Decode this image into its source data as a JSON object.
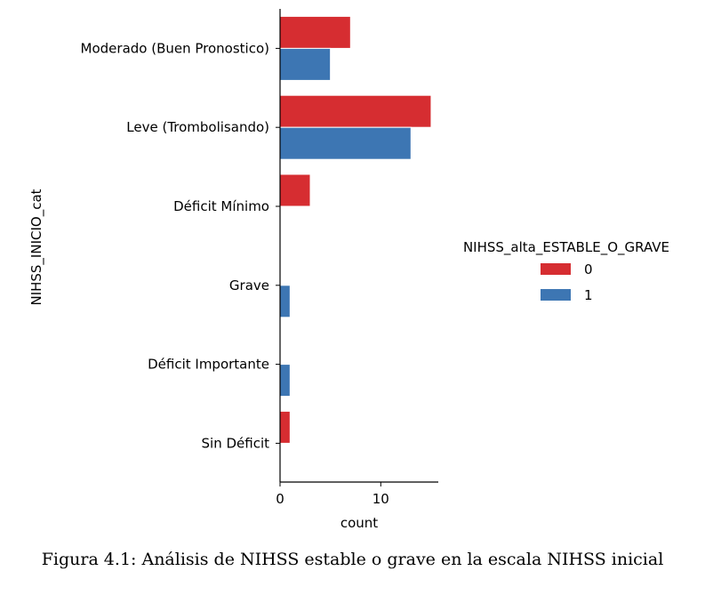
{
  "chart_data": {
    "type": "bar",
    "orientation": "horizontal",
    "categories": [
      "Moderado (Buen Pronostico)",
      "Leve (Trombolisando)",
      "Déficit Mínimo",
      "Grave",
      "Déficit Importante",
      "Sin Déficit"
    ],
    "series": [
      {
        "name": "0",
        "color": "#d62d31",
        "values": [
          7,
          15,
          3,
          0,
          0,
          1
        ]
      },
      {
        "name": "1",
        "color": "#3d76b3",
        "values": [
          5,
          13,
          0,
          1,
          1,
          0
        ]
      }
    ],
    "xlabel": "count",
    "ylabel": "NIHSS_INICIO_cat",
    "xlim": [
      0,
      16
    ],
    "xticks": [
      0,
      10
    ],
    "legend": {
      "title": "NIHSS_alta_ESTABLE_O_GRAVE",
      "placement": "right"
    },
    "grid": false
  },
  "caption": "Figura 4.1: Análisis de NIHSS estable o grave en la escala NIHSS inicial"
}
